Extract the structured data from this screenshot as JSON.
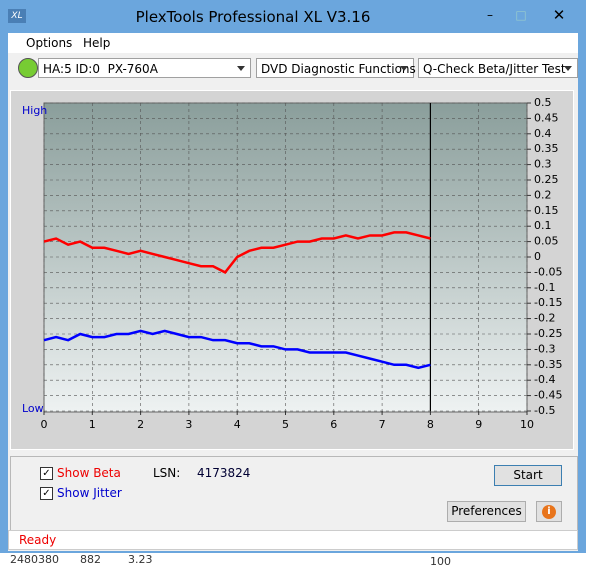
{
  "window": {
    "title": "PlexTools Professional XL V3.16"
  },
  "menu": [
    "Options",
    "Help"
  ],
  "toolbar": {
    "drive": "HA:5 ID:0  PX-760A",
    "function": "DVD Diagnostic Functions",
    "test": "Q-Check Beta/Jitter Test"
  },
  "chart_data": {
    "type": "line",
    "high_label": "High",
    "low_label": "Low",
    "x": [
      0,
      0.25,
      0.5,
      0.75,
      1,
      1.25,
      1.5,
      1.75,
      2,
      2.25,
      2.5,
      2.75,
      3,
      3.25,
      3.5,
      3.75,
      4,
      4.25,
      4.5,
      4.75,
      5,
      5.25,
      5.5,
      5.75,
      6,
      6.25,
      6.5,
      6.75,
      7,
      7.25,
      7.5,
      7.75,
      8
    ],
    "series": [
      {
        "name": "Show Beta",
        "color": "#ff0000",
        "checked": true,
        "values": [
          0.05,
          0.06,
          0.04,
          0.05,
          0.03,
          0.03,
          0.02,
          0.01,
          0.02,
          0.01,
          0,
          -0.01,
          -0.02,
          -0.03,
          -0.03,
          -0.05,
          0,
          0.02,
          0.03,
          0.03,
          0.04,
          0.05,
          0.05,
          0.06,
          0.06,
          0.07,
          0.06,
          0.07,
          0.07,
          0.08,
          0.08,
          0.07,
          0.06
        ]
      },
      {
        "name": "Show Jitter",
        "color": "#0000ff",
        "checked": true,
        "values": [
          -0.27,
          -0.26,
          -0.27,
          -0.25,
          -0.26,
          -0.26,
          -0.25,
          -0.25,
          -0.24,
          -0.25,
          -0.24,
          -0.25,
          -0.26,
          -0.26,
          -0.27,
          -0.27,
          -0.28,
          -0.28,
          -0.29,
          -0.29,
          -0.3,
          -0.3,
          -0.31,
          -0.31,
          -0.31,
          -0.31,
          -0.32,
          -0.33,
          -0.34,
          -0.35,
          -0.35,
          -0.36,
          -0.35
        ]
      }
    ],
    "xlim": [
      0,
      10
    ],
    "xticks": [
      0,
      1,
      2,
      3,
      4,
      5,
      6,
      7,
      8,
      9,
      10
    ],
    "ylim": [
      -0.5,
      0.5
    ],
    "yticks": [
      0.5,
      0.45,
      0.4,
      0.35,
      0.3,
      0.25,
      0.2,
      0.15,
      0.1,
      0.05,
      0,
      -0.05,
      -0.1,
      -0.15,
      -0.2,
      -0.25,
      -0.3,
      -0.35,
      -0.4,
      -0.45,
      -0.5
    ],
    "cursor_x": 8,
    "grid": true
  },
  "controls": {
    "lsn_label": "LSN:",
    "lsn_value": "4173824",
    "start": "Start",
    "preferences": "Preferences"
  },
  "status": "Ready",
  "background_text": [
    "2480380",
    "882",
    "3.23",
    "100"
  ]
}
